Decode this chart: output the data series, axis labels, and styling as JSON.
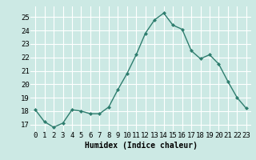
{
  "x": [
    0,
    1,
    2,
    3,
    4,
    5,
    6,
    7,
    8,
    9,
    10,
    11,
    12,
    13,
    14,
    15,
    16,
    17,
    18,
    19,
    20,
    21,
    22,
    23
  ],
  "y": [
    18.1,
    17.2,
    16.8,
    17.1,
    18.1,
    18.0,
    17.8,
    17.8,
    18.3,
    19.6,
    20.8,
    22.2,
    23.8,
    24.8,
    25.3,
    24.4,
    24.1,
    22.5,
    21.9,
    22.2,
    21.5,
    20.2,
    19.0,
    18.2
  ],
  "line_color": "#2e7d6e",
  "marker": "D",
  "marker_size": 2.0,
  "bg_color": "#cce9e4",
  "grid_color": "#ffffff",
  "xlabel": "Humidex (Indice chaleur)",
  "xlim": [
    -0.5,
    23.5
  ],
  "ylim": [
    16.5,
    25.8
  ],
  "yticks": [
    17,
    18,
    19,
    20,
    21,
    22,
    23,
    24,
    25
  ],
  "xticks": [
    0,
    1,
    2,
    3,
    4,
    5,
    6,
    7,
    8,
    9,
    10,
    11,
    12,
    13,
    14,
    15,
    16,
    17,
    18,
    19,
    20,
    21,
    22,
    23
  ],
  "xlabel_fontsize": 7,
  "tick_fontsize": 6.5,
  "line_width": 1.0
}
